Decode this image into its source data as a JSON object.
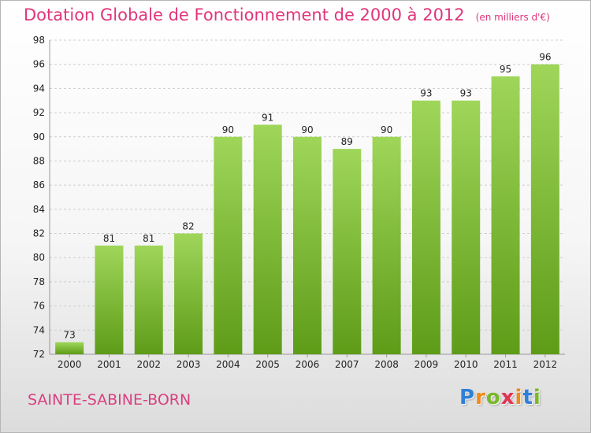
{
  "chart_data": {
    "type": "bar",
    "title": "Dotation Globale de Fonctionnement de 2000 à 2012",
    "subtitle": "(en milliers d'€)",
    "categories": [
      "2000",
      "2001",
      "2002",
      "2003",
      "2004",
      "2005",
      "2006",
      "2007",
      "2008",
      "2009",
      "2010",
      "2011",
      "2012"
    ],
    "values": [
      73,
      81,
      81,
      82,
      90,
      91,
      90,
      89,
      90,
      93,
      93,
      95,
      96
    ],
    "ylim": [
      72,
      98
    ],
    "yticks": [
      72,
      74,
      76,
      78,
      80,
      82,
      84,
      86,
      88,
      90,
      92,
      94,
      96,
      98
    ],
    "grid": true,
    "data_labels": true,
    "xlabel": "",
    "ylabel": "",
    "colors": {
      "title": "#e0357a",
      "bar_top": "#9fd65a",
      "bar_bottom": "#5e9c18",
      "grid": "#cccccc",
      "axis_text": "#222222"
    }
  },
  "footer": {
    "commune": "SAINTE-SABINE-BORN"
  },
  "logo": {
    "letters": [
      "P",
      "r",
      "o",
      "x",
      "i",
      "t",
      "i"
    ],
    "colors": [
      "#2f7fd6",
      "#ef8a1a",
      "#7bb829",
      "#e2334f",
      "#ef8a1a",
      "#2f7fd6",
      "#7bb829"
    ]
  }
}
